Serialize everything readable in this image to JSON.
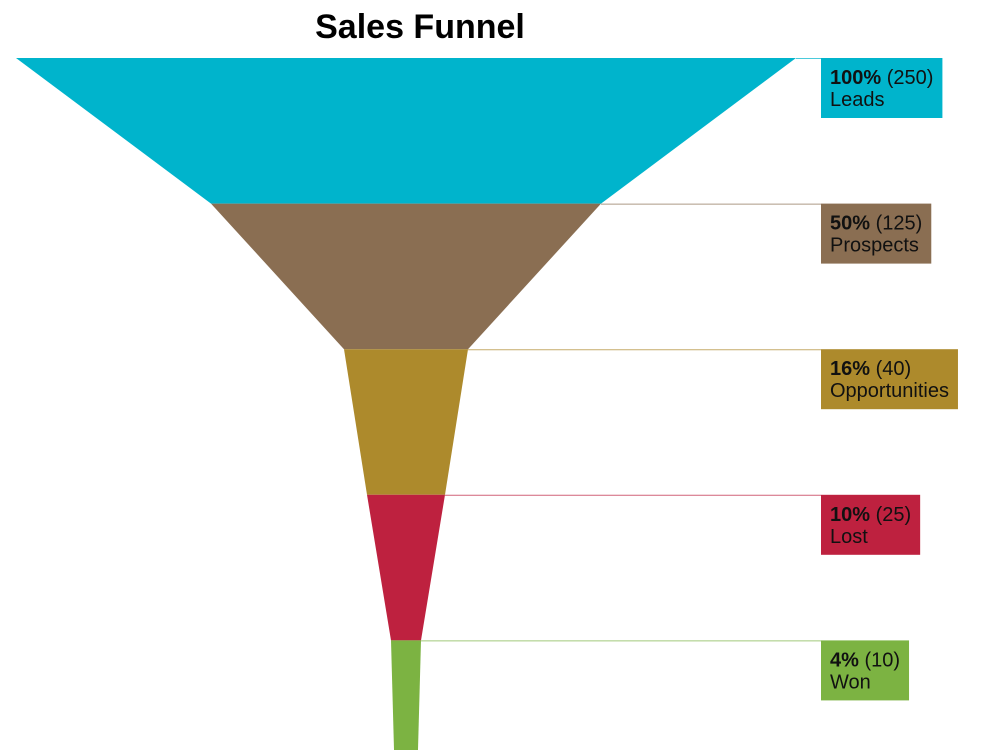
{
  "chart_data": {
    "type": "funnel",
    "title": "Sales Funnel",
    "stages": [
      {
        "name": "Leads",
        "percent_label": "100%",
        "value_label": "(250)",
        "value": 250,
        "percent": 100,
        "color": "#00B4CC"
      },
      {
        "name": "Prospects",
        "percent_label": "50%",
        "value_label": "(125)",
        "value": 125,
        "percent": 50,
        "color": "#8A6E52"
      },
      {
        "name": "Opportunities",
        "percent_label": "16%",
        "value_label": "(40)",
        "value": 40,
        "percent": 16,
        "color": "#AD8A2C"
      },
      {
        "name": "Lost",
        "percent_label": "10%",
        "value_label": "(25)",
        "value": 25,
        "percent": 10,
        "color": "#BE213F"
      },
      {
        "name": "Won",
        "percent_label": "4%",
        "value_label": "(10)",
        "value": 10,
        "percent": 4,
        "color": "#7CB342"
      }
    ]
  }
}
